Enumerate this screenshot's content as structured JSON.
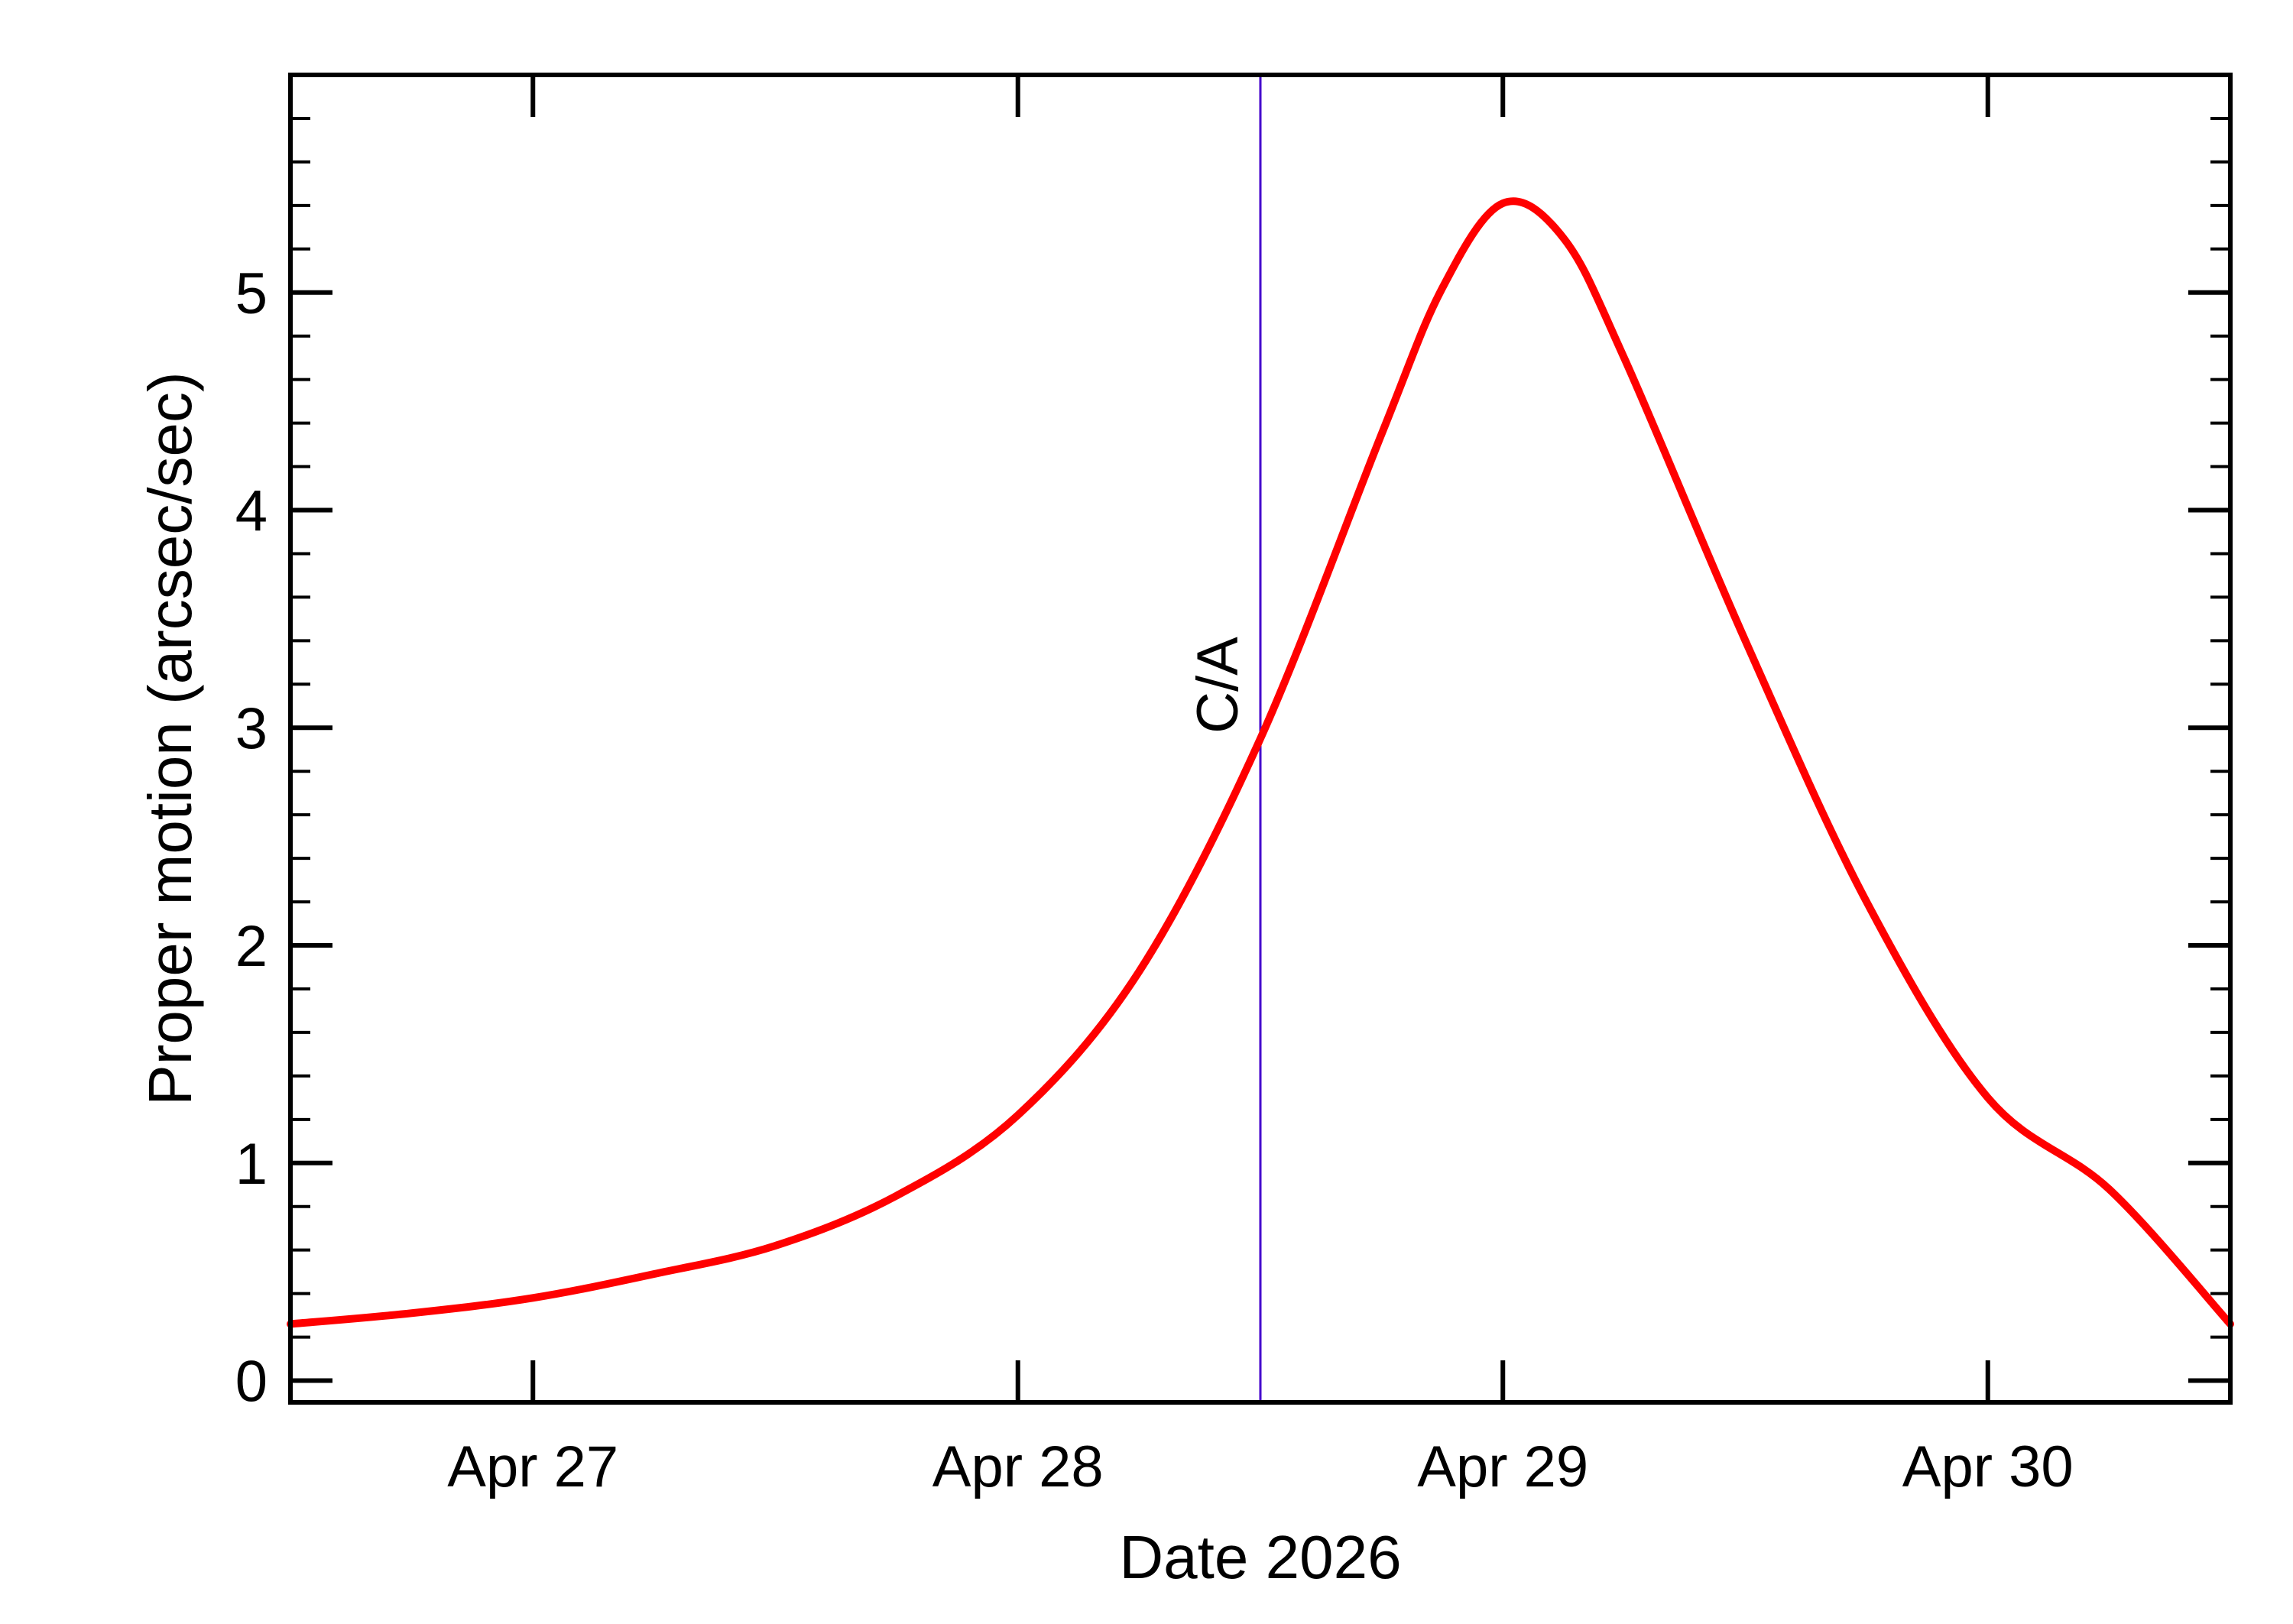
{
  "chart_data": {
    "type": "line",
    "title": "",
    "xlabel": "Date 2026",
    "ylabel": "Proper motion (arcsec/sec)",
    "x_tick_labels": [
      "Apr 27",
      "Apr 28",
      "Apr 29",
      "Apr 30"
    ],
    "x_ticks": [
      "2026-04-27",
      "2026-04-28",
      "2026-04-29",
      "2026-04-30"
    ],
    "y_tick_labels": [
      "0",
      "1",
      "2",
      "3",
      "4",
      "5"
    ],
    "y_ticks": [
      0,
      1,
      2,
      3,
      4,
      5
    ],
    "xlim": [
      "2026-04-26 12:00",
      "2026-04-30 12:00"
    ],
    "ylim": [
      -0.1,
      6.0
    ],
    "grid": false,
    "series": [
      {
        "color": "#ff0000",
        "points": [
          {
            "x": "2026-04-26 12:00",
            "y": 0.26
          },
          {
            "x": "2026-04-26 18:00",
            "y": 0.31
          },
          {
            "x": "2026-04-27 00:00",
            "y": 0.38
          },
          {
            "x": "2026-04-27 06:00",
            "y": 0.49
          },
          {
            "x": "2026-04-27 12:00",
            "y": 0.62
          },
          {
            "x": "2026-04-27 18:00",
            "y": 0.85
          },
          {
            "x": "2026-04-28 00:00",
            "y": 1.22
          },
          {
            "x": "2026-04-28 06:00",
            "y": 1.88
          },
          {
            "x": "2026-04-28 12:00",
            "y": 2.95
          },
          {
            "x": "2026-04-28 18:00",
            "y": 4.35
          },
          {
            "x": "2026-04-28 21:00",
            "y": 5.02
          },
          {
            "x": "2026-04-29 00:00",
            "y": 5.41
          },
          {
            "x": "2026-04-29 03:00",
            "y": 5.25
          },
          {
            "x": "2026-04-29 06:00",
            "y": 4.7
          },
          {
            "x": "2026-04-29 12:00",
            "y": 3.4
          },
          {
            "x": "2026-04-29 18:00",
            "y": 2.2
          },
          {
            "x": "2026-04-30 00:00",
            "y": 1.3
          },
          {
            "x": "2026-04-30 06:00",
            "y": 0.88
          },
          {
            "x": "2026-04-30 12:00",
            "y": 0.26
          }
        ]
      }
    ],
    "annotations": [
      {
        "text": "C/A",
        "x": "2026-04-28 12:00",
        "color": "#4400cc",
        "type": "vertical-line"
      }
    ]
  }
}
